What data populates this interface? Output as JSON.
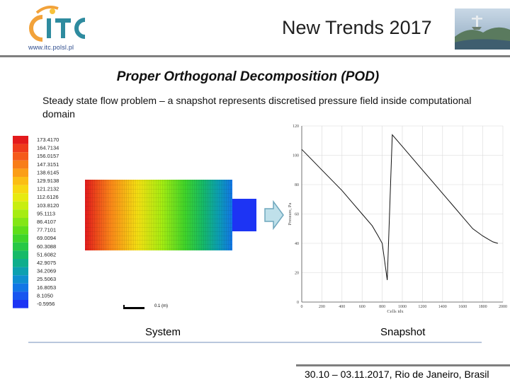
{
  "header": {
    "logo_url": "www.itc.polsl.pl",
    "conference_title": "New Trends 2017"
  },
  "slide": {
    "title": "Proper Orthogonal Decomposition (POD)",
    "description": "Steady state flow problem – a snapshot represents discretised pressure field inside computational domain"
  },
  "legend": {
    "values": [
      "173.4170",
      "164.7134",
      "156.0157",
      "147.3151",
      "138.6145",
      "129.9138",
      "121.2132",
      "112.6126",
      "103.8120",
      "95.1113",
      "86.4107",
      "77.7101",
      "69.0094",
      "60.3088",
      "51.6082",
      "42.9075",
      "34.2069",
      "25.5063",
      "16.8053",
      "8.1050",
      "-0.5956"
    ],
    "colors": [
      "#e31a1c",
      "#ef3b1c",
      "#f55a1a",
      "#f87d18",
      "#fb9e16",
      "#fbbe14",
      "#f7d812",
      "#e7ea10",
      "#c8ee10",
      "#a6ec12",
      "#83e616",
      "#5fde1a",
      "#3fd42a",
      "#27c846",
      "#16ba68",
      "#0eae8c",
      "#0ca0b0",
      "#0e8ed0",
      "#1276e6",
      "#1756f0",
      "#1d34f4"
    ]
  },
  "scale_label": "0.1 (m)",
  "captions": {
    "system": "System",
    "snapshot": "Snapshot"
  },
  "footer": {
    "date_location": "30.10 – 03.11.2017, Rio de Janeiro, Brasil"
  },
  "chart_data": {
    "type": "line",
    "xlabel": "Cells idx",
    "ylabel": "Pressure, Pa",
    "xlim": [
      0,
      2000
    ],
    "ylim": [
      0,
      120
    ],
    "x_ticks": [
      "0",
      "200",
      "400",
      "600",
      "800",
      "1000",
      "1200",
      "1400",
      "1600",
      "1800",
      "2000"
    ],
    "y_ticks": [
      "0",
      "20",
      "40",
      "60",
      "80",
      "100",
      "120"
    ],
    "grid": true,
    "series": [
      {
        "x": [
          0,
          100,
          200,
          300,
          400,
          500,
          600,
          700,
          760,
          800,
          850,
          900,
          1000,
          1100,
          1200,
          1300,
          1400,
          1500,
          1600,
          1700,
          1800,
          1850,
          1900,
          1950
        ],
        "y": [
          104,
          97,
          90,
          83,
          76,
          68,
          60,
          52,
          45,
          40,
          15,
          114,
          106,
          98,
          90,
          82,
          74,
          66,
          58,
          50,
          45,
          43,
          41,
          40
        ]
      }
    ]
  }
}
